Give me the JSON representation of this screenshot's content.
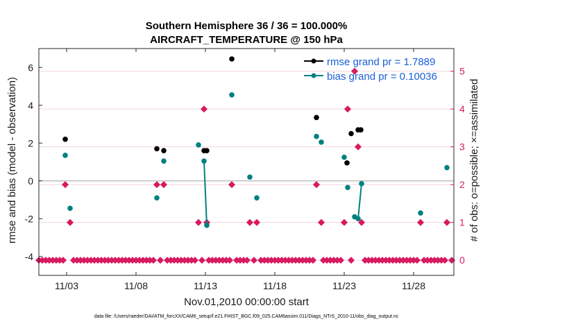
{
  "chart_data": {
    "type": "scatter",
    "title": "Southern Hemisphere 36 / 36 = 100.000%",
    "subtitle": "AIRCRAFT_TEMPERATURE @ 150 hPa",
    "xlabel": "Nov.01,2010 00:00:00 start",
    "ylabel": "rmse and bias (model - observation)",
    "ylabel_right": "# of obs: o=possible; ×=assimilated",
    "xlim": [
      1.0,
      30.9
    ],
    "ylim": [
      -5,
      7
    ],
    "ylim_right": [
      -0.4,
      5.6
    ],
    "x_ticks": [
      3,
      8,
      13,
      18,
      23,
      28
    ],
    "x_tick_labels": [
      "11/03",
      "11/08",
      "11/13",
      "11/18",
      "11/23",
      "11/28"
    ],
    "y_ticks": [
      -4,
      -2,
      0,
      2,
      4,
      6
    ],
    "y_tick_labels": [
      "-4",
      "-2",
      "0",
      "2",
      "4",
      "6"
    ],
    "y_ticks_right": [
      0,
      1,
      2,
      3,
      4,
      5
    ],
    "y_tick_labels_right": [
      "0",
      "1",
      "2",
      "3",
      "4",
      "5"
    ],
    "legend_position": "top-right",
    "colors": {
      "rmse": "#000000",
      "bias": "#008080",
      "obs": "#d81b60",
      "zero_line": "#bfbfbf",
      "legend_text": "#1a5fd6",
      "grid": "#f2d0dc"
    },
    "series": [
      {
        "name": "rmse grand pr = 1.7889",
        "x": [
          2.9,
          9.5,
          10.0,
          12.9,
          13.1,
          14.9,
          21.0,
          23.2,
          23.5,
          24.0,
          24.2
        ],
        "values": [
          2.2,
          1.7,
          1.6,
          1.6,
          1.6,
          6.45,
          3.35,
          0.95,
          2.5,
          2.7,
          2.7
        ],
        "segments": []
      },
      {
        "name": "bias grand pr = 0.10036",
        "x": [
          2.9,
          3.25,
          9.5,
          10.0,
          12.5,
          12.9,
          13.1,
          14.9,
          16.2,
          16.7,
          21.0,
          21.35,
          23.0,
          23.25,
          23.75,
          24.0,
          24.25,
          28.5,
          30.4
        ],
        "values": [
          1.35,
          -1.45,
          -0.9,
          1.05,
          1.9,
          1.05,
          -2.35,
          4.55,
          0.2,
          -0.9,
          2.35,
          2.05,
          1.25,
          -0.35,
          -1.9,
          -2.0,
          -0.15,
          -1.7,
          0.7
        ],
        "segments": [
          [
            12.9,
            1.05,
            13.1,
            -2.35
          ],
          [
            23.75,
            -1.9,
            24.0,
            -2.0
          ],
          [
            24.0,
            -2.0,
            24.25,
            -0.15
          ]
        ]
      }
    ],
    "obs_assimilated": {
      "x": [
        2.9,
        3.25,
        9.5,
        10.0,
        12.5,
        12.9,
        13.1,
        14.9,
        16.2,
        16.7,
        21.0,
        21.35,
        23.0,
        23.25,
        23.75,
        24.0,
        24.25,
        28.5,
        30.4
      ],
      "values": [
        2,
        1,
        2,
        2,
        1,
        4,
        1,
        2,
        1,
        1,
        2,
        1,
        1,
        4,
        5,
        3,
        1,
        1,
        1
      ]
    },
    "obs_zero_gaps": [
      2.9,
      3.25,
      9.5,
      10.0,
      12.5,
      12.9,
      13.1,
      14.9,
      16.2,
      16.7,
      21.0,
      21.35,
      23.0,
      23.25,
      23.75,
      24.0,
      24.25,
      28.5,
      30.4
    ]
  },
  "footnote": "data file: /Users/raeder/DAI/ATM_forcXX/CAM6_setup/f.e21.FHIST_BGC.f09_025.CAM6assim.011/Diags_NTrS_2010-11/obs_diag_output.nc"
}
